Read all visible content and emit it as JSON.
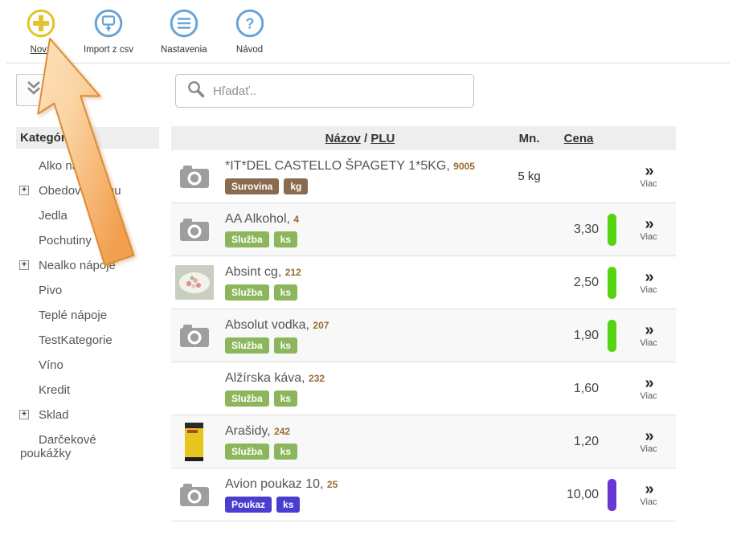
{
  "toolbar": {
    "buttons": [
      {
        "label": "Nová"
      },
      {
        "label": "Import z csv"
      },
      {
        "label": "Nastavenia"
      },
      {
        "label": "Návod"
      }
    ]
  },
  "search": {
    "placeholder": "Hľadať.."
  },
  "sidebar": {
    "title": "Kategórie",
    "items": [
      {
        "label": "Alko nápoje",
        "expandable": false
      },
      {
        "label": "Obedové menu",
        "expandable": true
      },
      {
        "label": "Jedla",
        "expandable": false
      },
      {
        "label": "Pochutiny",
        "expandable": false
      },
      {
        "label": "Nealko nápoje",
        "expandable": true
      },
      {
        "label": "Pivo",
        "expandable": false
      },
      {
        "label": "Teplé nápoje",
        "expandable": false
      },
      {
        "label": "TestKategorie",
        "expandable": false
      },
      {
        "label": "Víno",
        "expandable": false
      },
      {
        "label": "Kredit",
        "expandable": false
      },
      {
        "label": "Sklad",
        "expandable": true
      },
      {
        "label": "Darčekové poukážky",
        "expandable": false,
        "wrap": true
      }
    ]
  },
  "table": {
    "header": {
      "name_link": "Názov",
      "separator": " / ",
      "plu_link": "PLU",
      "qty": "Mn.",
      "price": "Cena"
    },
    "more_icon": "»",
    "more_label": "Viac",
    "rows": [
      {
        "name": "*IT*DEL CASTELLO ŠPAGETY 1*5KG",
        "plu": "9005",
        "tags": [
          "Surovina",
          "kg"
        ],
        "tag_color": "brown",
        "qty": "5 kg",
        "price": "",
        "bar": "",
        "image": "camera"
      },
      {
        "name": "AA Alkohol",
        "plu": "4",
        "tags": [
          "Služba",
          "ks"
        ],
        "tag_color": "green",
        "qty": "",
        "price": "3,30",
        "bar": "green",
        "image": "camera"
      },
      {
        "name": "Absint cg",
        "plu": "212",
        "tags": [
          "Služba",
          "ks"
        ],
        "tag_color": "green",
        "qty": "",
        "price": "2,50",
        "bar": "green",
        "image": "food-photo"
      },
      {
        "name": "Absolut vodka",
        "plu": "207",
        "tags": [
          "Služba",
          "ks"
        ],
        "tag_color": "green",
        "qty": "",
        "price": "1,90",
        "bar": "green",
        "image": "camera"
      },
      {
        "name": "Alžírska káva",
        "plu": "232",
        "tags": [
          "Služba",
          "ks"
        ],
        "tag_color": "green",
        "qty": "",
        "price": "1,60",
        "bar": "",
        "image": "none"
      },
      {
        "name": "Arašidy",
        "plu": "242",
        "tags": [
          "Služba",
          "ks"
        ],
        "tag_color": "green",
        "qty": "",
        "price": "1,20",
        "bar": "",
        "image": "yellow-photo"
      },
      {
        "name": "Avion poukaz 10",
        "plu": "25",
        "tags": [
          "Poukaz",
          "ks"
        ],
        "tag_color": "purple",
        "qty": "",
        "price": "10,00",
        "bar": "purple",
        "image": "camera"
      }
    ]
  },
  "colors": {
    "accent_yellow": "#e2c32b",
    "accent_blue": "#6aa3d8",
    "arrow_fill_light": "#fcdcb2",
    "arrow_fill_dark": "#f2a050",
    "arrow_stroke": "#dd8a33",
    "tags": {
      "brown": "#8b6b4f",
      "green": "#8cb65c",
      "purple": "#4a3ed0"
    },
    "bars": {
      "green": "#55d411",
      "purple": "#6936d3"
    }
  }
}
